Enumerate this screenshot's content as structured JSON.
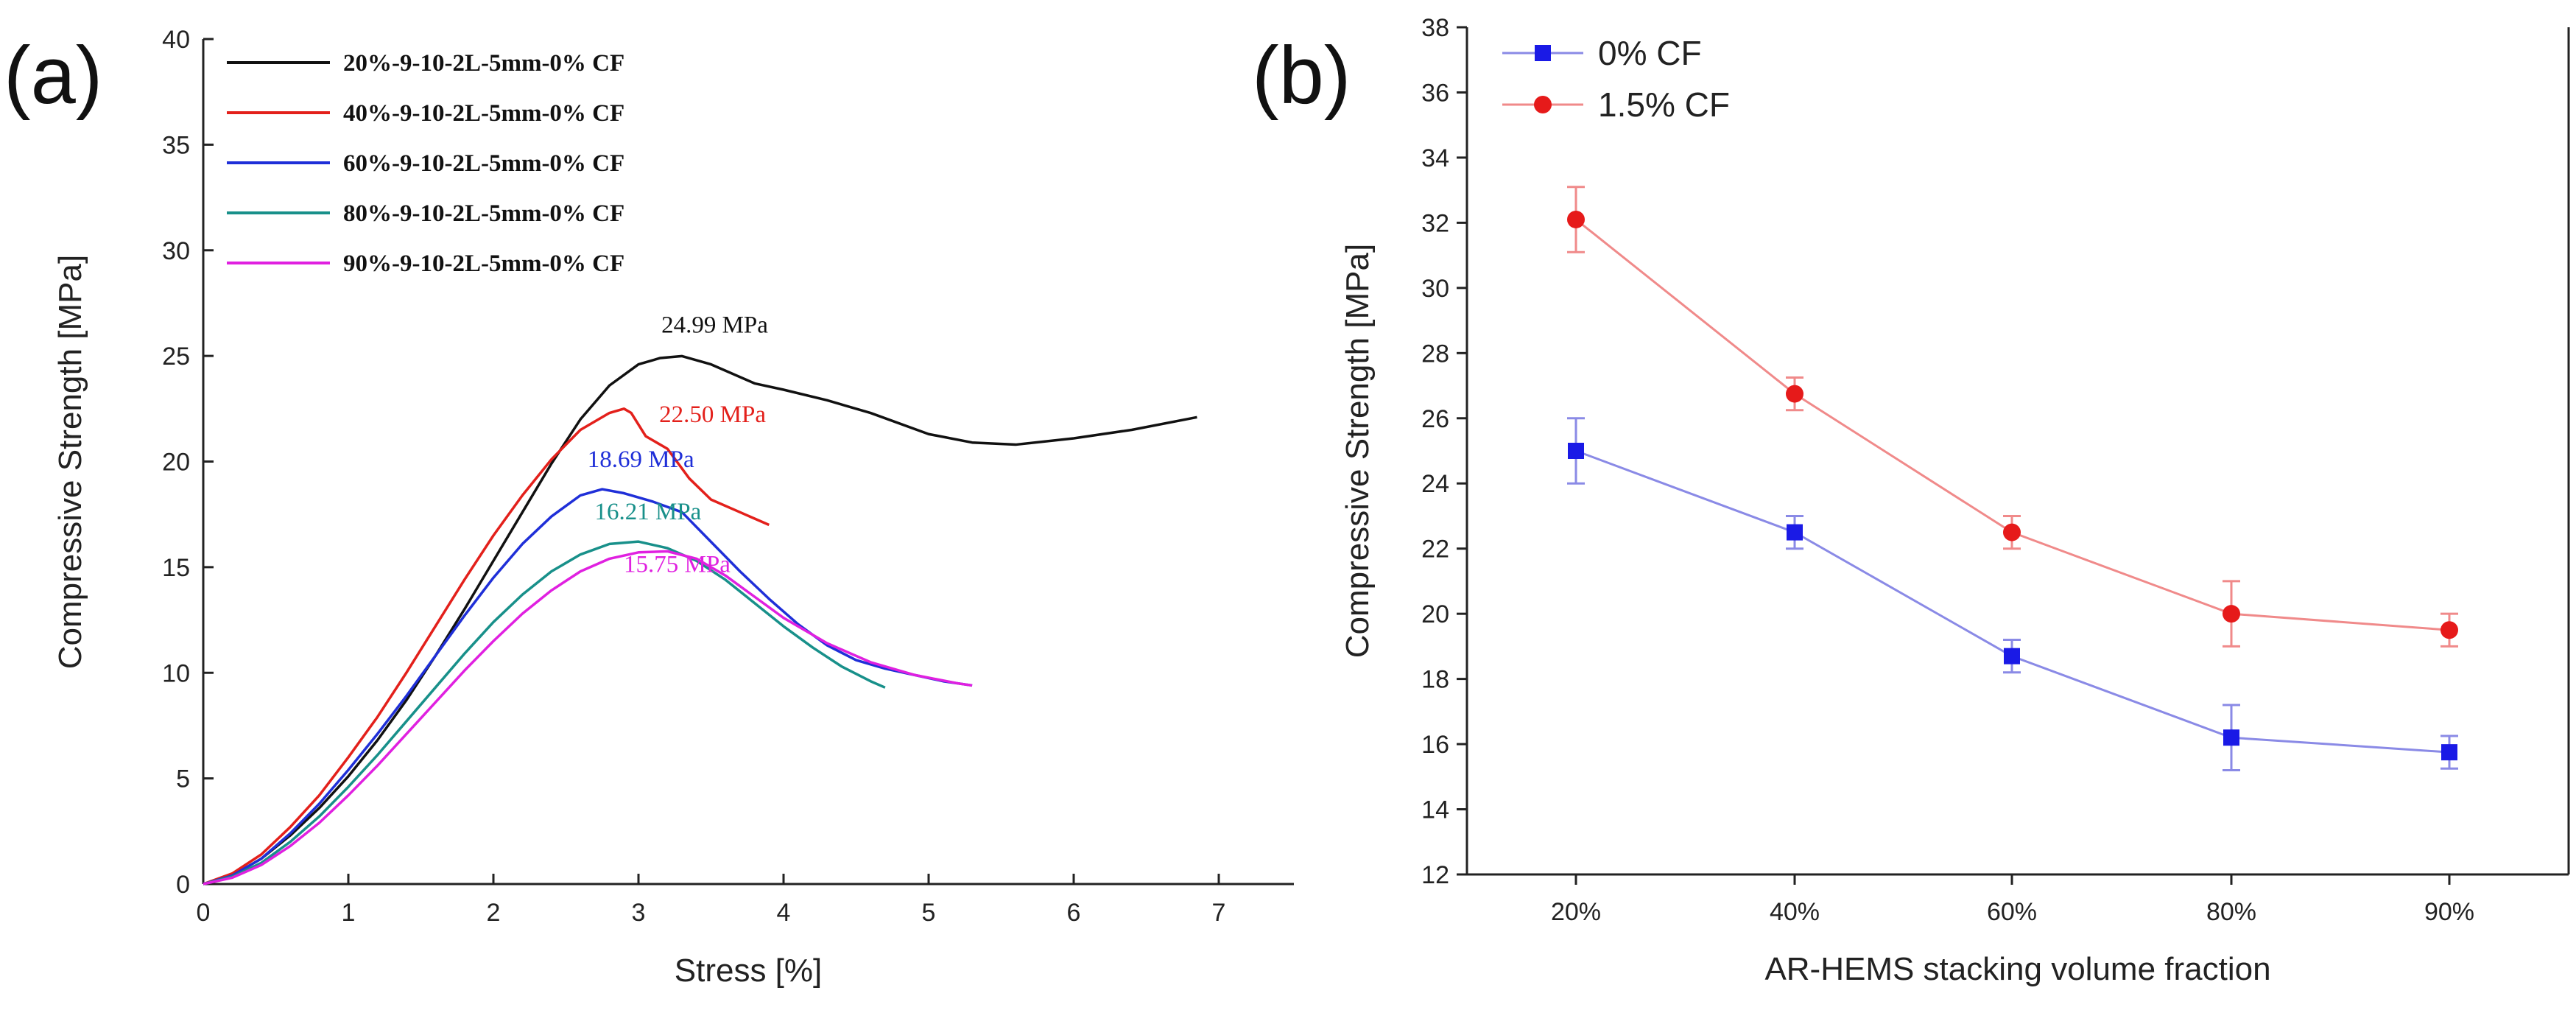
{
  "chart_data": [
    {
      "panel_label": "(a)",
      "type": "line",
      "xlabel": "Stress [%]",
      "ylabel": "Compressive Strength [MPa]",
      "xlim": [
        0,
        7.5
      ],
      "ylim": [
        0,
        40
      ],
      "xticks": [
        0,
        1,
        2,
        3,
        4,
        5,
        6,
        7
      ],
      "yticks": [
        0,
        5,
        10,
        15,
        20,
        25,
        30,
        35,
        40
      ],
      "legend_position": "top-left",
      "series": [
        {
          "name": "20%-9-10-2L-5mm-0% CF",
          "color": "#111111",
          "x": [
            0,
            0.2,
            0.4,
            0.6,
            0.8,
            1.0,
            1.2,
            1.4,
            1.6,
            1.8,
            2.0,
            2.2,
            2.4,
            2.6,
            2.8,
            3.0,
            3.15,
            3.3,
            3.5,
            3.8,
            4.0,
            4.3,
            4.6,
            5.0,
            5.3,
            5.6,
            6.0,
            6.4,
            6.85
          ],
          "y": [
            0,
            0.4,
            1.2,
            2.3,
            3.6,
            5.1,
            6.8,
            8.7,
            10.8,
            13.0,
            15.3,
            17.6,
            19.9,
            22.0,
            23.6,
            24.6,
            24.9,
            24.99,
            24.6,
            23.7,
            23.4,
            22.9,
            22.3,
            21.3,
            20.9,
            20.8,
            21.1,
            21.5,
            22.1
          ]
        },
        {
          "name": "40%-9-10-2L-5mm-0% CF",
          "color": "#e3201b",
          "x": [
            0,
            0.2,
            0.4,
            0.6,
            0.8,
            1.0,
            1.2,
            1.4,
            1.6,
            1.8,
            2.0,
            2.2,
            2.4,
            2.6,
            2.8,
            2.9,
            2.95,
            3.05,
            3.2,
            3.35,
            3.5,
            3.7,
            3.9
          ],
          "y": [
            0,
            0.5,
            1.4,
            2.7,
            4.2,
            6.0,
            7.9,
            10.0,
            12.2,
            14.4,
            16.5,
            18.4,
            20.1,
            21.5,
            22.3,
            22.5,
            22.3,
            21.2,
            20.6,
            19.2,
            18.2,
            17.6,
            17.0
          ]
        },
        {
          "name": "60%-9-10-2L-5mm-0% CF",
          "color": "#1f2fd8",
          "x": [
            0,
            0.2,
            0.4,
            0.6,
            0.8,
            1.0,
            1.2,
            1.4,
            1.6,
            1.8,
            2.0,
            2.2,
            2.4,
            2.6,
            2.75,
            2.9,
            3.1,
            3.3,
            3.5,
            3.7,
            3.9,
            4.1,
            4.3,
            4.5,
            4.7,
            4.9,
            5.1,
            5.3
          ],
          "y": [
            0,
            0.4,
            1.2,
            2.4,
            3.8,
            5.4,
            7.1,
            8.9,
            10.8,
            12.7,
            14.5,
            16.1,
            17.4,
            18.4,
            18.69,
            18.5,
            18.1,
            17.6,
            16.2,
            14.8,
            13.5,
            12.3,
            11.3,
            10.6,
            10.2,
            9.9,
            9.6,
            9.4
          ]
        },
        {
          "name": "80%-9-10-2L-5mm-0% CF",
          "color": "#18908a",
          "x": [
            0,
            0.2,
            0.4,
            0.6,
            0.8,
            1.0,
            1.2,
            1.4,
            1.6,
            1.8,
            2.0,
            2.2,
            2.4,
            2.6,
            2.8,
            3.0,
            3.2,
            3.4,
            3.6,
            3.8,
            4.0,
            4.2,
            4.4,
            4.6,
            4.7
          ],
          "y": [
            0,
            0.35,
            1.0,
            2.0,
            3.2,
            4.6,
            6.1,
            7.7,
            9.3,
            10.9,
            12.4,
            13.7,
            14.8,
            15.6,
            16.1,
            16.21,
            15.9,
            15.3,
            14.4,
            13.3,
            12.2,
            11.2,
            10.3,
            9.6,
            9.3
          ]
        },
        {
          "name": "90%-9-10-2L-5mm-0% CF",
          "color": "#e020e0",
          "x": [
            0,
            0.2,
            0.4,
            0.6,
            0.8,
            1.0,
            1.2,
            1.4,
            1.6,
            1.8,
            2.0,
            2.2,
            2.4,
            2.6,
            2.8,
            3.0,
            3.2,
            3.4,
            3.6,
            3.8,
            4.0,
            4.3,
            4.6,
            4.9,
            5.2,
            5.3
          ],
          "y": [
            0,
            0.3,
            0.9,
            1.8,
            2.9,
            4.2,
            5.6,
            7.1,
            8.6,
            10.1,
            11.5,
            12.8,
            13.9,
            14.8,
            15.4,
            15.7,
            15.75,
            15.4,
            14.6,
            13.6,
            12.6,
            11.4,
            10.5,
            9.9,
            9.5,
            9.4
          ]
        }
      ],
      "annotations": [
        {
          "text": "24.99 MPa",
          "x": 3.3,
          "y": 24.99,
          "color": "#111111"
        },
        {
          "text": "22.50 MPa",
          "x": 2.95,
          "y": 22.5,
          "color": "#e3201b"
        },
        {
          "text": "18.69 MPa",
          "x": 2.75,
          "y": 18.69,
          "color": "#1f2fd8"
        },
        {
          "text": "16.21 MPa",
          "x": 2.85,
          "y": 16.21,
          "color": "#18908a"
        },
        {
          "text": "15.75 MPa",
          "x": 3.0,
          "y": 15.75,
          "color": "#e020e0"
        }
      ]
    },
    {
      "panel_label": "(b)",
      "type": "line",
      "xlabel": "AR-HEMS stacking volume fraction",
      "ylabel": "Compressive Strength [MPa]",
      "categories": [
        "20%",
        "40%",
        "60%",
        "80%",
        "90%"
      ],
      "ylim": [
        12,
        38
      ],
      "yticks": [
        12,
        14,
        16,
        18,
        20,
        22,
        24,
        26,
        28,
        30,
        32,
        34,
        36,
        38
      ],
      "legend_position": "top-left",
      "series": [
        {
          "name": "0% CF",
          "color": "#1a1ae6",
          "line_color": "#8a8ae6",
          "marker": "square",
          "values": [
            25.0,
            22.5,
            18.7,
            16.2,
            15.75
          ],
          "errors": [
            1.0,
            0.5,
            0.5,
            1.0,
            0.5
          ]
        },
        {
          "name": "1.5% CF",
          "color": "#e61a1a",
          "line_color": "#f08a8a",
          "marker": "circle",
          "values": [
            32.1,
            26.75,
            22.5,
            20.0,
            19.5
          ],
          "errors": [
            1.0,
            0.5,
            0.5,
            1.0,
            0.5
          ]
        }
      ]
    }
  ]
}
